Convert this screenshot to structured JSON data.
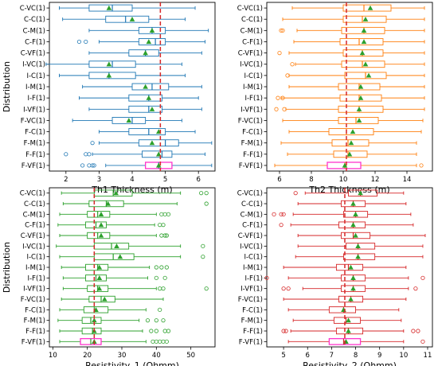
{
  "colors": {
    "series": [
      "#1f77b4",
      "#ff7f0e",
      "#2ca02c",
      "#d62728"
    ],
    "highlight_box": "#ff33cc",
    "reference_line": "#d62728"
  },
  "chart_data": [
    {
      "type": "boxplot",
      "orientation": "horizontal",
      "xlabel": "Th1 Thickness (m)",
      "ylabel": "Distribution",
      "xlim": [
        1.5,
        6.5
      ],
      "xticks": [
        2,
        3,
        4,
        5,
        6
      ],
      "reference_line": 4.85,
      "categories": [
        "C-VC(1)",
        "C-C(1)",
        "C-M(1)",
        "C-F(1)",
        "C-VF(1)",
        "I-VC(1)",
        "I-C(1)",
        "I-M(1)",
        "I-F(1)",
        "I-VF(1)",
        "F-VC(1)",
        "F-C(1)",
        "F-M(1)",
        "F-F(1)",
        "F-VF(1)"
      ],
      "boxes": [
        {
          "whislo": 1.8,
          "q1": 2.7,
          "med": 3.4,
          "q3": 4.0,
          "whishi": 5.9,
          "mean": 3.3,
          "fliers": []
        },
        {
          "whislo": 1.9,
          "q1": 3.2,
          "med": 3.8,
          "q3": 4.5,
          "whishi": 5.6,
          "mean": 4.0,
          "fliers": []
        },
        {
          "whislo": 2.7,
          "q1": 4.2,
          "med": 4.6,
          "q3": 5.0,
          "whishi": 6.3,
          "mean": 4.6,
          "fliers": []
        },
        {
          "whislo": 3.0,
          "q1": 4.2,
          "med": 4.7,
          "q3": 5.0,
          "whishi": 6.2,
          "mean": 4.5,
          "fliers": [
            2.4,
            2.6
          ]
        },
        {
          "whislo": 2.7,
          "q1": 3.9,
          "med": 4.4,
          "q3": 4.8,
          "whishi": 6.1,
          "mean": 4.4,
          "fliers": []
        },
        {
          "whislo": 1.4,
          "q1": 2.7,
          "med": 3.4,
          "q3": 4.1,
          "whishi": 5.5,
          "mean": 3.3,
          "fliers": []
        },
        {
          "whislo": 1.8,
          "q1": 2.7,
          "med": 3.3,
          "q3": 4.1,
          "whishi": 5.6,
          "mean": 3.3,
          "fliers": []
        },
        {
          "whislo": 2.5,
          "q1": 4.0,
          "med": 4.6,
          "q3": 5.1,
          "whishi": 6.1,
          "mean": 4.4,
          "fliers": []
        },
        {
          "whislo": 2.4,
          "q1": 3.9,
          "med": 4.5,
          "q3": 4.9,
          "whishi": 6.0,
          "mean": 4.5,
          "fliers": []
        },
        {
          "whislo": 2.7,
          "q1": 3.9,
          "med": 4.5,
          "q3": 4.9,
          "whishi": 6.1,
          "mean": 4.6,
          "fliers": []
        },
        {
          "whislo": 2.2,
          "q1": 3.4,
          "med": 4.0,
          "q3": 4.4,
          "whishi": 5.5,
          "mean": 3.9,
          "fliers": []
        },
        {
          "whislo": 3.0,
          "q1": 3.9,
          "med": 4.5,
          "q3": 5.0,
          "whishi": 5.9,
          "mean": 4.8,
          "fliers": []
        },
        {
          "whislo": 3.0,
          "q1": 4.2,
          "med": 5.0,
          "q3": 5.4,
          "whishi": 6.4,
          "mean": 4.6,
          "fliers": [
            2.8
          ]
        },
        {
          "whislo": 2.8,
          "q1": 4.3,
          "med": 4.9,
          "q3": 5.2,
          "whishi": 6.2,
          "mean": 4.8,
          "fliers": [
            2.0,
            2.6,
            2.7
          ]
        },
        {
          "whislo": 3.2,
          "q1": 4.4,
          "med": 4.8,
          "q3": 5.2,
          "whishi": 6.4,
          "mean": 4.8,
          "fliers": [
            2.5,
            2.7,
            2.8,
            2.85
          ],
          "highlight": true
        }
      ]
    },
    {
      "type": "boxplot",
      "orientation": "horizontal",
      "xlabel": "Th2 Thickness (m)",
      "ylabel": "",
      "xlim": [
        5.2,
        15.6
      ],
      "xticks": [
        6,
        8,
        10,
        12,
        14
      ],
      "reference_line": 10.2,
      "categories": [
        "C-VC(1)",
        "C-C(1)",
        "C-M(1)",
        "C-F(1)",
        "C-VF(1)",
        "I-VC(1)",
        "I-C(1)",
        "I-M(1)",
        "I-F(1)",
        "I-VF(1)",
        "F-VC(1)",
        "F-C(1)",
        "F-M(1)",
        "F-F(1)",
        "F-VF(1)"
      ],
      "boxes": [
        {
          "whislo": 6.8,
          "q1": 10.0,
          "med": 11.3,
          "q3": 13.0,
          "whishi": 15.1,
          "mean": 11.7,
          "fliers": []
        },
        {
          "whislo": 6.2,
          "q1": 10.0,
          "med": 11.2,
          "q3": 12.7,
          "whishi": 15.1,
          "mean": 11.4,
          "fliers": []
        },
        {
          "whislo": 7.1,
          "q1": 9.9,
          "med": 11.3,
          "q3": 12.6,
          "whishi": 15.1,
          "mean": 11.3,
          "fliers": [
            6.1,
            6.2
          ]
        },
        {
          "whislo": 6.9,
          "q1": 9.8,
          "med": 11.0,
          "q3": 12.5,
          "whishi": 15.1,
          "mean": 11.3,
          "fliers": []
        },
        {
          "whislo": 6.6,
          "q1": 10.0,
          "med": 11.2,
          "q3": 12.5,
          "whishi": 15.1,
          "mean": 11.2,
          "fliers": [
            6.0
          ]
        },
        {
          "whislo": 7.0,
          "q1": 9.9,
          "med": 11.2,
          "q3": 12.6,
          "whishi": 15.1,
          "mean": 11.4,
          "fliers": [
            6.8
          ]
        },
        {
          "whislo": 6.6,
          "q1": 10.1,
          "med": 11.4,
          "q3": 12.7,
          "whishi": 15.1,
          "mean": 11.6,
          "fliers": [
            6.5
          ]
        },
        {
          "whislo": 6.6,
          "q1": 9.7,
          "med": 11.0,
          "q3": 12.3,
          "whishi": 15.1,
          "mean": 11.1,
          "fliers": []
        },
        {
          "whislo": 6.1,
          "q1": 9.8,
          "med": 11.0,
          "q3": 12.4,
          "whishi": 15.1,
          "mean": 11.1,
          "fliers": [
            5.9,
            6.2
          ]
        },
        {
          "whislo": 6.4,
          "q1": 9.7,
          "med": 11.0,
          "q3": 12.5,
          "whishi": 15.1,
          "mean": 11.0,
          "fliers": [
            5.8,
            6.3
          ]
        },
        {
          "whislo": 6.2,
          "q1": 9.7,
          "med": 10.8,
          "q3": 12.2,
          "whishi": 15.0,
          "mean": 11.0,
          "fliers": []
        },
        {
          "whislo": 6.6,
          "q1": 9.1,
          "med": 10.2,
          "q3": 11.9,
          "whishi": 14.9,
          "mean": 10.6,
          "fliers": []
        },
        {
          "whislo": 6.1,
          "q1": 9.3,
          "med": 10.3,
          "q3": 11.6,
          "whishi": 14.6,
          "mean": 10.5,
          "fliers": []
        },
        {
          "whislo": 6.5,
          "q1": 9.4,
          "med": 10.3,
          "q3": 11.5,
          "whishi": 14.6,
          "mean": 10.4,
          "fliers": []
        },
        {
          "whislo": 5.7,
          "q1": 9.0,
          "med": 10.1,
          "q3": 11.1,
          "whishi": 14.6,
          "mean": 10.1,
          "fliers": [
            14.9
          ],
          "highlight": true
        }
      ]
    },
    {
      "type": "boxplot",
      "orientation": "horizontal",
      "xlabel": "Resistivity_1 (Ohmm)",
      "ylabel": "Distribution",
      "xlim": [
        9,
        57
      ],
      "xticks": [
        10,
        20,
        30,
        40,
        50
      ],
      "reference_line": 22.0,
      "categories": [
        "C-VC(1)",
        "C-C(1)",
        "C-M(1)",
        "C-F(1)",
        "C-VF(1)",
        "I-VC(1)",
        "I-C(1)",
        "I-M(1)",
        "I-F(1)",
        "I-VF(1)",
        "F-VC(1)",
        "F-C(1)",
        "F-M(1)",
        "F-F(1)",
        "F-VF(1)"
      ],
      "boxes": [
        {
          "whislo": 12.5,
          "q1": 22.0,
          "med": 27.5,
          "q3": 33.0,
          "whishi": 47.0,
          "mean": 28.3,
          "fliers": [
            53.0,
            54.5
          ]
        },
        {
          "whislo": 13.0,
          "q1": 20.5,
          "med": 25.5,
          "q3": 30.5,
          "whishi": 46.0,
          "mean": 26.0,
          "fliers": [
            54.5
          ]
        },
        {
          "whislo": 12.0,
          "q1": 20.0,
          "med": 23.0,
          "q3": 26.5,
          "whishi": 40.0,
          "mean": 24.0,
          "fliers": [
            41.5,
            42.5,
            43.5
          ]
        },
        {
          "whislo": 11.5,
          "q1": 19.5,
          "med": 22.5,
          "q3": 25.5,
          "whishi": 39.5,
          "mean": 24.0,
          "fliers": [
            41.0,
            42.0
          ]
        },
        {
          "whislo": 12.0,
          "q1": 20.0,
          "med": 23.0,
          "q3": 26.5,
          "whishi": 40.0,
          "mean": 24.0,
          "fliers": [
            41.5,
            42.5,
            43.0
          ]
        },
        {
          "whislo": 11.0,
          "q1": 22.0,
          "med": 27.0,
          "q3": 32.0,
          "whishi": 47.0,
          "mean": 28.5,
          "fliers": [
            53.5
          ]
        },
        {
          "whislo": 12.0,
          "q1": 22.0,
          "med": 27.5,
          "q3": 33.5,
          "whishi": 47.0,
          "mean": 29.5,
          "fliers": [
            53.5
          ]
        },
        {
          "whislo": 12.5,
          "q1": 19.5,
          "med": 23.0,
          "q3": 26.0,
          "whishi": 38.0,
          "mean": 23.5,
          "fliers": [
            40.0,
            41.5,
            43.0
          ]
        },
        {
          "whislo": 13.0,
          "q1": 19.5,
          "med": 22.5,
          "q3": 25.5,
          "whishi": 37.5,
          "mean": 23.5,
          "fliers": [
            40.0,
            42.5
          ]
        },
        {
          "whislo": 13.0,
          "q1": 20.0,
          "med": 23.0,
          "q3": 26.0,
          "whishi": 40.0,
          "mean": 23.5,
          "fliers": [
            41.0,
            42.0,
            54.5
          ]
        },
        {
          "whislo": 12.5,
          "q1": 20.5,
          "med": 24.0,
          "q3": 28.0,
          "whishi": 42.0,
          "mean": 25.0,
          "fliers": []
        },
        {
          "whislo": 12.0,
          "q1": 19.0,
          "med": 22.0,
          "q3": 26.0,
          "whishi": 37.0,
          "mean": 22.5,
          "fliers": [
            41.0
          ]
        },
        {
          "whislo": 11.5,
          "q1": 18.5,
          "med": 21.0,
          "q3": 24.0,
          "whishi": 35.0,
          "mean": 22.0,
          "fliers": [
            37.5,
            40.0,
            42.0
          ]
        },
        {
          "whislo": 12.0,
          "q1": 18.5,
          "med": 21.5,
          "q3": 24.0,
          "whishi": 36.0,
          "mean": 22.0,
          "fliers": [
            38.5,
            40.0,
            42.5,
            43.5
          ]
        },
        {
          "whislo": 12.0,
          "q1": 18.0,
          "med": 21.0,
          "q3": 24.0,
          "whishi": 37.0,
          "mean": 22.0,
          "fliers": [
            39.0,
            40.0,
            41.0,
            42.0,
            43.0
          ],
          "highlight": true
        }
      ]
    },
    {
      "type": "boxplot",
      "orientation": "horizontal",
      "xlabel": "Resistivity_2 (Ohmm)",
      "ylabel": "",
      "xlim": [
        4.3,
        11.2
      ],
      "xticks": [
        5,
        6,
        7,
        8,
        9,
        10,
        11
      ],
      "reference_line": 7.55,
      "categories": [
        "C-VC(1)",
        "C-C(1)",
        "C-M(1)",
        "C-F(1)",
        "C-VF(1)",
        "I-VC(1)",
        "I-C(1)",
        "I-M(1)",
        "I-F(1)",
        "I-VF(1)",
        "F-VC(1)",
        "F-C(1)",
        "F-M(1)",
        "F-F(1)",
        "F-VF(1)"
      ],
      "boxes": [
        {
          "whislo": 5.9,
          "q1": 7.7,
          "med": 8.2,
          "q3": 8.9,
          "whishi": 10.0,
          "mean": 8.2,
          "fliers": [
            5.5
          ]
        },
        {
          "whislo": 5.6,
          "q1": 7.4,
          "med": 7.9,
          "q3": 8.4,
          "whishi": 10.1,
          "mean": 7.9,
          "fliers": []
        },
        {
          "whislo": 5.4,
          "q1": 7.5,
          "med": 8.0,
          "q3": 8.5,
          "whishi": 10.3,
          "mean": 8.0,
          "fliers": [
            4.6,
            4.9,
            5.0
          ]
        },
        {
          "whislo": 5.3,
          "q1": 7.3,
          "med": 7.9,
          "q3": 8.4,
          "whishi": 10.4,
          "mean": 7.9,
          "fliers": [
            4.9
          ]
        },
        {
          "whislo": 5.6,
          "q1": 7.4,
          "med": 7.9,
          "q3": 8.6,
          "whishi": 10.9,
          "mean": 8.0,
          "fliers": []
        },
        {
          "whislo": 5.6,
          "q1": 7.6,
          "med": 8.1,
          "q3": 8.8,
          "whishi": 10.8,
          "mean": 8.1,
          "fliers": []
        },
        {
          "whislo": 5.5,
          "q1": 7.5,
          "med": 8.1,
          "q3": 8.8,
          "whishi": 10.8,
          "mean": 8.1,
          "fliers": []
        },
        {
          "whislo": 5.0,
          "q1": 7.2,
          "med": 7.7,
          "q3": 8.3,
          "whishi": 10.1,
          "mean": 7.8,
          "fliers": []
        },
        {
          "whislo": 5.2,
          "q1": 7.4,
          "med": 7.9,
          "q3": 8.4,
          "whishi": 10.2,
          "mean": 7.9,
          "fliers": [
            4.3,
            10.8
          ]
        },
        {
          "whislo": 5.8,
          "q1": 7.4,
          "med": 7.9,
          "q3": 8.4,
          "whishi": 10.2,
          "mean": 7.9,
          "fliers": [
            5.0,
            5.2,
            10.5
          ]
        },
        {
          "whislo": 5.0,
          "q1": 7.3,
          "med": 7.8,
          "q3": 8.3,
          "whishi": 10.1,
          "mean": 7.8,
          "fliers": []
        },
        {
          "whislo": 5.2,
          "q1": 6.9,
          "med": 7.5,
          "q3": 8.0,
          "whishi": 9.8,
          "mean": 7.5,
          "fliers": []
        },
        {
          "whislo": 5.4,
          "q1": 7.1,
          "med": 7.6,
          "q3": 8.2,
          "whishi": 9.9,
          "mean": 7.7,
          "fliers": []
        },
        {
          "whislo": 5.3,
          "q1": 7.2,
          "med": 7.7,
          "q3": 8.3,
          "whishi": 10.0,
          "mean": 7.7,
          "fliers": [
            5.0,
            5.1,
            10.4,
            10.6
          ]
        },
        {
          "whislo": 5.2,
          "q1": 6.9,
          "med": 7.5,
          "q3": 8.2,
          "whishi": 10.0,
          "mean": 7.6,
          "fliers": [
            10.8
          ],
          "highlight": true
        }
      ]
    }
  ]
}
